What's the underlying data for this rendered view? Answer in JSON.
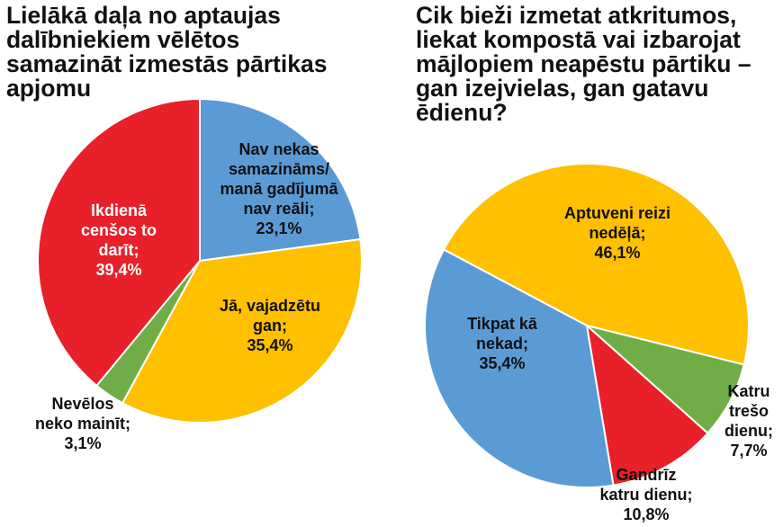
{
  "chart_data": [
    {
      "type": "pie",
      "title": "Lielākā daļa no aptaujas dalībniekiem vēlētos samazināt izmestās pārtikas apjomu",
      "slices": [
        {
          "label": "Nav nekas samazināms/ manā gadījumā nav reāli;",
          "value": 23.1,
          "value_text": "23,1%",
          "color": "#5b9bd5"
        },
        {
          "label": "Jā, vajadzētu gan;",
          "value": 35.4,
          "value_text": "35,4%",
          "color": "#ffc000"
        },
        {
          "label": "Nevēlos neko mainīt;",
          "value": 3.1,
          "value_text": "3,1%",
          "color": "#70ad47"
        },
        {
          "label": "Ikdienā cenšos to darīt;",
          "value": 39.4,
          "value_text": "39,4%",
          "color": "#e8202a"
        }
      ]
    },
    {
      "type": "pie",
      "title": "Cik bieži izmetat atkritumos, liekat kompostā vai izbarojat mājlopiem neapēstu pārtiku – gan izejvielas, gan gatavu ēdienu?",
      "slices": [
        {
          "label": "Aptuveni reizi nedēļā;",
          "value": 46.1,
          "value_text": "46,1%",
          "color": "#ffc000"
        },
        {
          "label": "Katru trešo dienu;",
          "value": 7.7,
          "value_text": "7,7%",
          "color": "#70ad47"
        },
        {
          "label": "Gandrīz katru dienu;",
          "value": 10.8,
          "value_text": "10,8%",
          "color": "#e8202a"
        },
        {
          "label": "Tikpat kā nekad;",
          "value": 35.4,
          "value_text": "35,4%",
          "color": "#5b9bd5"
        }
      ]
    }
  ]
}
